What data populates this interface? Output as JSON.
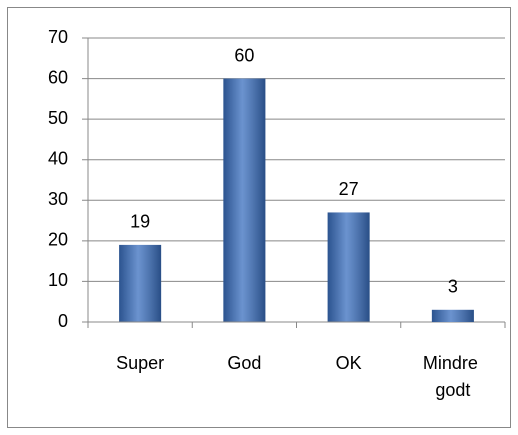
{
  "chart_data": {
    "type": "bar",
    "categories": [
      "Super",
      "God",
      "OK",
      "Mindre godt"
    ],
    "values": [
      19,
      60,
      27,
      3
    ],
    "color": "#3a6fbf",
    "ylim": [
      0,
      70
    ],
    "yticks": [
      0,
      10,
      20,
      30,
      40,
      50,
      60,
      70
    ],
    "grid": true
  }
}
